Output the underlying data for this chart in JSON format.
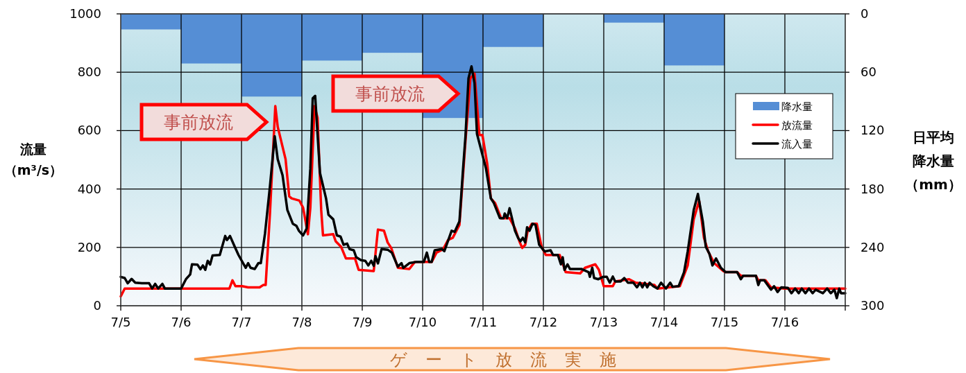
{
  "chart_data": {
    "type": "line",
    "ylabel": "流量（m³/s）",
    "y2label": "日平均降水量（mm）",
    "annotations": [
      "事前放流",
      "事前放流",
      "ゲート放流実施"
    ],
    "xlim": [
      "--07-05",
      "--07-17"
    ],
    "xticks": [
      {
        "value": "--07-05",
        "label": "7/5"
      },
      {
        "value": "--07-06",
        "label": "7/6"
      },
      {
        "value": "--07-07",
        "label": "7/7"
      },
      {
        "value": "--07-08",
        "label": "7/8"
      },
      {
        "value": "--07-09",
        "label": "7/9"
      },
      {
        "value": "--07-10",
        "label": "7/10"
      },
      {
        "value": "--07-11",
        "label": "7/11"
      },
      {
        "value": "--07-12",
        "label": "7/12"
      },
      {
        "value": "--07-13",
        "label": "7/13"
      },
      {
        "value": "--07-14",
        "label": "7/14"
      },
      {
        "value": "--07-15",
        "label": "7/15"
      },
      {
        "value": "--07-16",
        "label": "7/16"
      },
      {
        "value": "--07-17",
        "label": null
      }
    ],
    "ylim": [
      0,
      1000
    ],
    "yticks": [
      0,
      200,
      400,
      600,
      800,
      1000
    ],
    "y2lim": [
      300,
      0
    ],
    "y2ticks": [
      0,
      60,
      120,
      180,
      240,
      300
    ],
    "grid": true,
    "legend": "right",
    "series": [
      {
        "name": "降水量",
        "type": "bar",
        "axis": "y2",
        "color": "#558ed5",
        "x": [
          "--07-05T12:00",
          "--07-06T12:00",
          "--07-07T12:00",
          "--07-08T12:00",
          "--07-09T12:00",
          "--07-10T12:00",
          "--07-11T12:00",
          "--07-12T12:00",
          "--07-13T12:00",
          "--07-14T12:00",
          "--07-15T12:00",
          "--07-16T12:00"
        ],
        "values": [
          16,
          51,
          85,
          48,
          40,
          107,
          34,
          0,
          9,
          53,
          0,
          0
        ]
      },
      {
        "name": "放流量",
        "color": "#ff0000",
        "x": [
          "--07-05T00:00",
          "--07-05T01:34",
          "--07-06T19:12",
          "--07-06T20:24",
          "--07-06T21:36",
          "--07-07T00:14",
          "--07-07T02:38",
          "--07-07T07:12",
          "--07-07T08:38",
          "--07-07T09:36",
          "--07-07T11:17",
          "--07-07T13:26",
          "--07-07T14:24",
          "--07-07T17:31",
          "--07-07T18:58",
          "--07-07T19:55",
          "--07-07T23:02",
          "--07-08T00:29",
          "--07-08T02:24",
          "--07-08T03:22",
          "--07-08T05:02",
          "--07-08T06:14",
          "--07-08T07:41",
          "--07-08T08:24",
          "--07-08T12:29",
          "--07-08T13:26",
          "--07-08T15:36",
          "--07-08T17:31",
          "--07-08T21:07",
          "--07-08T22:34",
          "--07-09T04:34",
          "--07-09T06:14",
          "--07-09T08:38",
          "--07-09T10:05",
          "--07-09T11:31",
          "--07-09T14:10",
          "--07-09T18:43",
          "--07-09T20:53",
          "--07-10T03:36",
          "--07-10T05:31",
          "--07-10T08:10",
          "--07-10T10:05",
          "--07-10T12:00",
          "--07-10T14:38",
          "--07-10T17:02",
          "--07-10T18:58",
          "--07-10T20:38",
          "--07-10T22:34",
          "--07-10T23:46",
          "--07-11T01:41",
          "--07-11T03:07",
          "--07-11T04:48",
          "--07-11T07:12",
          "--07-11T10:34",
          "--07-11T12:43",
          "--07-11T14:38",
          "--07-11T15:36",
          "--07-11T16:48",
          "--07-11T17:46",
          "--07-11T19:26",
          "--07-11T21:22",
          "--07-11T23:17",
          "--07-12T00:58",
          "--07-12T06:29",
          "--07-12T08:53",
          "--07-12T14:38",
          "--07-12T16:34",
          "--07-12T20:38",
          "--07-12T22:05",
          "--07-13T00:00",
          "--07-13T03:36",
          "--07-13T04:34",
          "--07-13T10:05",
          "--07-13T12:43",
          "--07-13T20:10",
          "--07-13T21:22",
          "--07-14T06:14",
          "--07-14T09:22",
          "--07-14T11:46",
          "--07-14T13:55",
          "--07-14T15:50",
          "--07-14T17:31",
          "--07-14T19:55",
          "--07-14T23:31",
          "--07-15T00:29",
          "--07-15T05:02",
          "--07-15T06:29",
          "--07-15T12:29",
          "--07-15T13:26",
          "--07-15T16:19",
          "--07-15T18:29",
          "--07-16T00:00",
          "--07-17T00:00"
        ],
        "values": [
          32,
          59,
          59,
          87,
          67,
          67,
          63,
          63,
          71,
          71,
          312,
          684,
          613,
          502,
          375,
          368,
          360,
          336,
          245,
          336,
          684,
          644,
          328,
          241,
          245,
          221,
          202,
          162,
          162,
          123,
          119,
          261,
          257,
          217,
          198,
          130,
          126,
          150,
          150,
          182,
          194,
          225,
          233,
          277,
          565,
          779,
          795,
          585,
          585,
          486,
          368,
          352,
          300,
          300,
          265,
          217,
          198,
          209,
          257,
          281,
          281,
          202,
          174,
          174,
          115,
          111,
          130,
          142,
          123,
          67,
          67,
          83,
          91,
          79,
          71,
          59,
          67,
          138,
          296,
          360,
          233,
          186,
          146,
          119,
          115,
          115,
          103,
          103,
          87,
          87,
          63,
          59,
          59
        ]
      },
      {
        "name": "流入量",
        "color": "#000000",
        "x": [
          "--07-05T00:00",
          "--07-05T01:34",
          "--07-05T02:46",
          "--07-05T04:19",
          "--07-05T05:46",
          "--07-05T08:24",
          "--07-05T11:17",
          "--07-05T12:29",
          "--07-05T13:41",
          "--07-05T14:53",
          "--07-05T16:34",
          "--07-05T17:31",
          "--07-06T00:00",
          "--07-06T01:55",
          "--07-06T03:36",
          "--07-06T04:19",
          "--07-06T06:29",
          "--07-06T07:41",
          "--07-06T08:38",
          "--07-06T09:36",
          "--07-06T10:34",
          "--07-06T11:31",
          "--07-06T12:29",
          "--07-06T15:22",
          "--07-06T17:31",
          "--07-06T18:14",
          "--07-06T19:26",
          "--07-06T21:07",
          "--07-06T22:48",
          "--07-07T01:41",
          "--07-07T02:38",
          "--07-07T03:36",
          "--07-07T05:17",
          "--07-07T06:43",
          "--07-07T07:41",
          "--07-07T09:22",
          "--07-07T11:17",
          "--07-07T13:12",
          "--07-07T14:24",
          "--07-07T16:19",
          "--07-07T18:14",
          "--07-07T20:24",
          "--07-07T21:50",
          "--07-07T22:48",
          "--07-08T00:29",
          "--07-08T01:55",
          "--07-08T03:22",
          "--07-08T04:19",
          "--07-08T05:17",
          "--07-08T07:12",
          "--07-08T09:36",
          "--07-08T10:34",
          "--07-08T12:29",
          "--07-08T13:55",
          "--07-08T15:22",
          "--07-08T16:34",
          "--07-08T18:00",
          "--07-08T18:58",
          "--07-08T20:38",
          "--07-08T21:36",
          "--07-08T23:31",
          "--07-09T01:12",
          "--07-09T02:24",
          "--07-09T03:36",
          "--07-09T04:34",
          "--07-09T05:17",
          "--07-09T06:14",
          "--07-09T07:41",
          "--07-09T10:05",
          "--07-09T11:46",
          "--07-09T14:10",
          "--07-09T15:36",
          "--07-09T16:19",
          "--07-09T18:43",
          "--07-09T21:22",
          "--07-10T00:29",
          "--07-10T01:41",
          "--07-10T02:38",
          "--07-10T03:36",
          "--07-10T04:48",
          "--07-10T07:41",
          "--07-10T08:38",
          "--07-10T11:31",
          "--07-10T12:43",
          "--07-10T14:38",
          "--07-10T16:05",
          "--07-10T17:02",
          "--07-10T18:14",
          "--07-10T19:26",
          "--07-10T20:38",
          "--07-10T21:36",
          "--07-11T00:14",
          "--07-11T01:12",
          "--07-11T03:07",
          "--07-11T04:19",
          "--07-11T06:43",
          "--07-11T08:10",
          "--07-11T08:38",
          "--07-11T09:36",
          "--07-11T10:34",
          "--07-11T12:43",
          "--07-11T13:55",
          "--07-11T14:53",
          "--07-11T15:50",
          "--07-11T16:48",
          "--07-11T17:31",
          "--07-11T18:29",
          "--07-11T19:41",
          "--07-11T20:53",
          "--07-11T22:19",
          "--07-12T00:29",
          "--07-12T02:53",
          "--07-12T03:50",
          "--07-12T05:46",
          "--07-12T06:58",
          "--07-12T07:41",
          "--07-12T08:24",
          "--07-12T09:36",
          "--07-12T10:34",
          "--07-12T15:07",
          "--07-12T18:00",
          "--07-12T18:29",
          "--07-12T19:26",
          "--07-12T20:10",
          "--07-12T21:50",
          "--07-12T23:46",
          "--07-13T01:12",
          "--07-13T02:24",
          "--07-13T03:36",
          "--07-13T04:34",
          "--07-13T06:43",
          "--07-13T08:10",
          "--07-13T09:36",
          "--07-13T11:46",
          "--07-13T13:12",
          "--07-13T14:24",
          "--07-13T15:22",
          "--07-13T16:19",
          "--07-13T17:17",
          "--07-13T18:14",
          "--07-13T19:41",
          "--07-13T21:22",
          "--07-13T22:48",
          "--07-14T00:43",
          "--07-14T02:24",
          "--07-14T03:22",
          "--07-14T05:46",
          "--07-14T07:55",
          "--07-14T09:22",
          "--07-14T11:46",
          "--07-14T13:26",
          "--07-14T15:22",
          "--07-14T16:34",
          "--07-14T18:00",
          "--07-14T19:12",
          "--07-14T20:38",
          "--07-14T22:34",
          "--07-15T00:29",
          "--07-15T05:02",
          "--07-15T06:29",
          "--07-15T07:26",
          "--07-15T12:29",
          "--07-15T13:26",
          "--07-15T14:10",
          "--07-15T15:50",
          "--07-15T18:29",
          "--07-15T19:41",
          "--07-15T21:07",
          "--07-15T22:34",
          "--07-16T01:12",
          "--07-16T02:38",
          "--07-16T04:05",
          "--07-16T05:31",
          "--07-16T06:43",
          "--07-16T08:10",
          "--07-16T09:36",
          "--07-16T11:02",
          "--07-16T12:14",
          "--07-16T15:07",
          "--07-16T16:48",
          "--07-16T18:14",
          "--07-16T19:41",
          "--07-16T20:38",
          "--07-16T21:36",
          "--07-16T22:19",
          "--07-17T00:00"
        ],
        "values": [
          99,
          95,
          77,
          92,
          79,
          77,
          77,
          59,
          75,
          59,
          75,
          59,
          59,
          91,
          107,
          142,
          141,
          125,
          138,
          123,
          154,
          141,
          172,
          174,
          239,
          225,
          239,
          206,
          174,
          130,
          146,
          130,
          126,
          146,
          146,
          249,
          407,
          581,
          502,
          447,
          328,
          281,
          274,
          257,
          241,
          265,
          470,
          711,
          719,
          455,
          368,
          312,
          296,
          241,
          237,
          209,
          213,
          194,
          190,
          166,
          156,
          154,
          138,
          154,
          137,
          170,
          145,
          194,
          192,
          182,
          134,
          146,
          130,
          146,
          150,
          150,
          182,
          150,
          150,
          190,
          194,
          187,
          257,
          253,
          289,
          470,
          581,
          779,
          820,
          763,
          589,
          502,
          470,
          368,
          352,
          300,
          300,
          316,
          300,
          334,
          257,
          233,
          221,
          233,
          217,
          269,
          257,
          281,
          277,
          209,
          186,
          190,
          174,
          174,
          142,
          166,
          123,
          142,
          126,
          126,
          115,
          99,
          130,
          95,
          91,
          99,
          99,
          79,
          100,
          83,
          83,
          95,
          79,
          79,
          63,
          79,
          63,
          79,
          63,
          79,
          67,
          59,
          79,
          59,
          79,
          65,
          67,
          115,
          186,
          328,
          383,
          289,
          202,
          178,
          138,
          162,
          130,
          115,
          115,
          91,
          103,
          103,
          71,
          87,
          87,
          55,
          67,
          47,
          63,
          61,
          43,
          59,
          43,
          59,
          43,
          59,
          43,
          55,
          43,
          59,
          43,
          55,
          26,
          59,
          43,
          43
        ]
      }
    ]
  }
}
